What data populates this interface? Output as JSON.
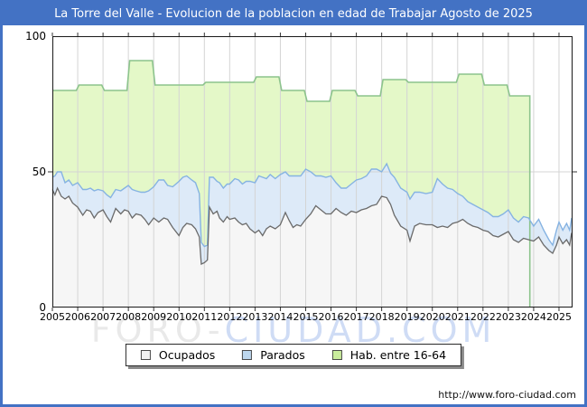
{
  "frame": {
    "title": "La Torre del Valle - Evolucion de la poblacion en edad de Trabajar Agosto de 2025"
  },
  "watermark": {
    "part1": "FORO-",
    "part2": "CIUDAD.COM"
  },
  "footer": {
    "url": "http://www.foro-ciudad.com"
  },
  "legend": {
    "items": [
      {
        "label": "Ocupados",
        "fill": "#f2f2f2",
        "stroke": "#6b6b6b"
      },
      {
        "label": "Parados",
        "fill": "#bdd7ee",
        "stroke": "#6b8cb4"
      },
      {
        "label": "Hab. entre 16-64",
        "fill": "#c9ec9c",
        "stroke": "#79a85e"
      }
    ]
  },
  "colors": {
    "frame_blue": "#4372c4",
    "plot_border": "#1a1a1a",
    "gridline": "#d4d4d4",
    "tick": "#333333",
    "ocupados_fill": "#f6f6f6",
    "ocupados_stroke": "#6b6b6b",
    "parados_fill": "#ddeaf8",
    "parados_stroke": "#86b3e2",
    "hab_fill": "#e4f8c8",
    "hab_stroke": "#8cc48c"
  },
  "chart_data": {
    "type": "area",
    "title": "La Torre del Valle - Evolucion de la poblacion en edad de Trabajar Agosto de 2025",
    "xlabel": "",
    "ylabel": "",
    "x_range": [
      2005,
      2025.5
    ],
    "ylim": [
      0,
      100
    ],
    "y_ticks": [
      0,
      50,
      100
    ],
    "x_tick_labels": [
      "2005",
      "2006",
      "2007",
      "2008",
      "2009",
      "2010",
      "2011",
      "2012",
      "2013",
      "2014",
      "2015",
      "2016",
      "2017",
      "2018",
      "2019",
      "2020",
      "2021",
      "2022",
      "2023",
      "2024",
      "2025"
    ],
    "legend_position": "bottom-center",
    "grid": true,
    "note": "Monthly series, values estimated from pixels. Parados is stacked on top of Ocupados. Hab. entre 16-64 is a yearly step series ending early 2024.",
    "x": [
      2005.0,
      2005.1,
      2005.2,
      2005.35,
      2005.5,
      2005.65,
      2005.8,
      2006.0,
      2006.2,
      2006.35,
      2006.5,
      2006.65,
      2006.8,
      2007.0,
      2007.15,
      2007.3,
      2007.5,
      2007.7,
      2007.85,
      2008.0,
      2008.15,
      2008.3,
      2008.5,
      2008.65,
      2008.8,
      2009.0,
      2009.2,
      2009.4,
      2009.55,
      2009.75,
      2010.0,
      2010.15,
      2010.3,
      2010.5,
      2010.65,
      2010.8,
      2010.88,
      2011.0,
      2011.12,
      2011.2,
      2011.35,
      2011.5,
      2011.6,
      2011.75,
      2011.9,
      2012.0,
      2012.2,
      2012.35,
      2012.5,
      2012.65,
      2012.8,
      2013.0,
      2013.15,
      2013.3,
      2013.45,
      2013.6,
      2013.8,
      2014.0,
      2014.2,
      2014.35,
      2014.5,
      2014.65,
      2014.8,
      2015.0,
      2015.2,
      2015.4,
      2015.6,
      2015.8,
      2016.0,
      2016.2,
      2016.4,
      2016.6,
      2016.8,
      2017.0,
      2017.2,
      2017.4,
      2017.6,
      2017.8,
      2018.0,
      2018.2,
      2018.35,
      2018.5,
      2018.75,
      2019.0,
      2019.12,
      2019.3,
      2019.5,
      2019.75,
      2020.0,
      2020.2,
      2020.4,
      2020.6,
      2020.8,
      2021.0,
      2021.2,
      2021.4,
      2021.6,
      2021.8,
      2022.0,
      2022.2,
      2022.4,
      2022.6,
      2022.8,
      2023.0,
      2023.2,
      2023.4,
      2023.6,
      2023.8,
      2024.0,
      2024.2,
      2024.4,
      2024.6,
      2024.75,
      2024.9,
      2025.0,
      2025.15,
      2025.3,
      2025.42,
      2025.5
    ],
    "series": [
      {
        "name": "Ocupados",
        "values": [
          43.5,
          41.5,
          44,
          41,
          40,
          41,
          38.5,
          37,
          34,
          36,
          35.5,
          33,
          35,
          36,
          33.5,
          31.5,
          36.5,
          34.5,
          36,
          35.5,
          33,
          34.5,
          34,
          32.5,
          30.5,
          33,
          31.5,
          33,
          32.5,
          29.5,
          26.5,
          29.5,
          31,
          30.5,
          29,
          26,
          16,
          16.5,
          17.5,
          37,
          34.5,
          35.5,
          33,
          31.5,
          33.5,
          32.5,
          33,
          31.5,
          30.5,
          31,
          29,
          27.5,
          28.5,
          26.5,
          29,
          30,
          29,
          30.5,
          35,
          32,
          29.5,
          30.5,
          30,
          32.5,
          34.5,
          37.5,
          36,
          34.5,
          34.5,
          36.5,
          35,
          34,
          35.5,
          35,
          36,
          36.5,
          37.5,
          38,
          41,
          40.5,
          38,
          34,
          30,
          28.5,
          24.5,
          30,
          31,
          30.5,
          30.5,
          29.5,
          30,
          29.5,
          31,
          31.5,
          32.5,
          31,
          30,
          29.5,
          28.5,
          28,
          26.5,
          26,
          27,
          28,
          25,
          24,
          25.5,
          25,
          24.5,
          26,
          23,
          21,
          20,
          23,
          26,
          23.5,
          25,
          23,
          27.5
        ]
      },
      {
        "name": "Parados",
        "stacked_on": "Ocupados",
        "values": [
          4.5,
          7,
          6,
          9,
          6,
          6,
          6.5,
          9,
          9.5,
          7.5,
          8.5,
          10,
          8.5,
          7,
          8,
          9,
          7,
          8.5,
          8,
          9.5,
          10.5,
          8.5,
          8.5,
          10,
          12.5,
          11.5,
          15.5,
          14,
          12.5,
          15,
          20,
          18.5,
          17.5,
          16.5,
          17,
          16,
          8,
          6,
          5.5,
          11,
          13.5,
          11,
          13,
          12.5,
          12,
          13,
          14.5,
          15.5,
          15,
          15.5,
          17.5,
          18.5,
          20,
          21.5,
          18.5,
          19,
          18.5,
          18.5,
          15,
          16.5,
          19,
          18,
          18.5,
          18.5,
          15.5,
          11,
          12.5,
          13.5,
          14,
          9.5,
          9,
          10,
          10,
          12,
          11.5,
          12,
          13.5,
          13,
          9,
          12.5,
          11.5,
          14,
          14,
          14,
          15.5,
          12.5,
          11.5,
          11.5,
          12,
          18,
          15.5,
          14.5,
          12.5,
          10.5,
          8.5,
          8,
          8,
          7.5,
          7.5,
          7,
          7,
          7.5,
          7.5,
          8,
          8,
          7.5,
          8,
          8,
          5.5,
          6.5,
          5.5,
          4,
          3,
          5.5,
          5.5,
          5,
          6,
          5.5,
          5.5
        ]
      },
      {
        "name": "Hab. entre 16-64",
        "step_years": [
          2005,
          2006,
          2007,
          2008,
          2009,
          2010,
          2011,
          2012,
          2013,
          2014,
          2015,
          2016,
          2017,
          2018,
          2019,
          2020,
          2021,
          2022,
          2023
        ],
        "values": [
          80,
          82,
          80,
          91,
          82,
          82,
          83,
          83,
          85,
          80,
          76,
          80,
          78,
          84,
          83,
          83,
          86,
          82,
          78
        ],
        "ends_at": 2023.85
      }
    ]
  }
}
